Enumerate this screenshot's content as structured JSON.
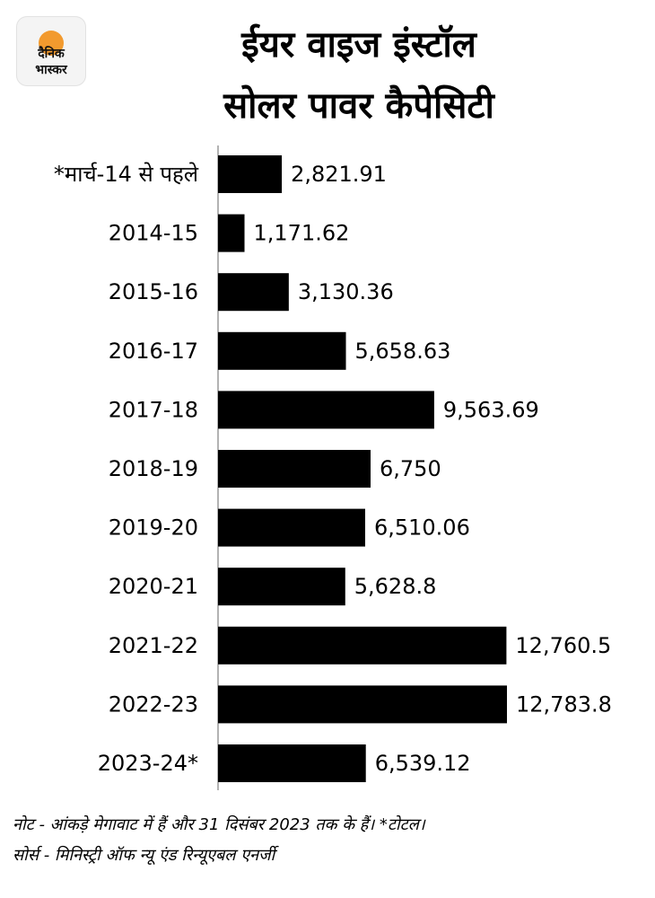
{
  "logo": {
    "line1": "दैनिक",
    "line2": "भास्कर",
    "accent_color": "#f29a2e"
  },
  "title_line1": "ईयर वाइज इंस्टॉल",
  "title_line2": "सोलर पावर कैपेसिटी",
  "chart_data": {
    "type": "bar",
    "orientation": "horizontal",
    "categories": [
      "*मार्च-14 से पहले",
      "2014-15",
      "2015-16",
      "2016-17",
      "2017-18",
      "2018-19",
      "2019-20",
      "2020-21",
      "2021-22",
      "2022-23",
      "2023-24*"
    ],
    "values": [
      2821.91,
      1171.62,
      3130.36,
      5658.63,
      9563.69,
      6750,
      6510.06,
      5628.8,
      12760.5,
      12783.8,
      6539.12
    ],
    "data_labels": [
      "2,821.91",
      "1,171.62",
      "3,130.36",
      "5,658.63",
      "9,563.69",
      "6,750",
      "6,510.06",
      "5,628.8",
      "12,760.5",
      "12,783.8",
      "6,539.12"
    ],
    "xlim": [
      0,
      12783.8
    ],
    "bar_color": "#000000",
    "grid": false,
    "legend": "none"
  },
  "note": "नोट - आंकड़े मेगावाट में हैं और 31 दिसंबर 2023 तक के हैं। *टोटल।",
  "source": "सोर्स - मिनिस्ट्री ऑफ न्यू एंड रिन्यूएबल एनर्जी"
}
